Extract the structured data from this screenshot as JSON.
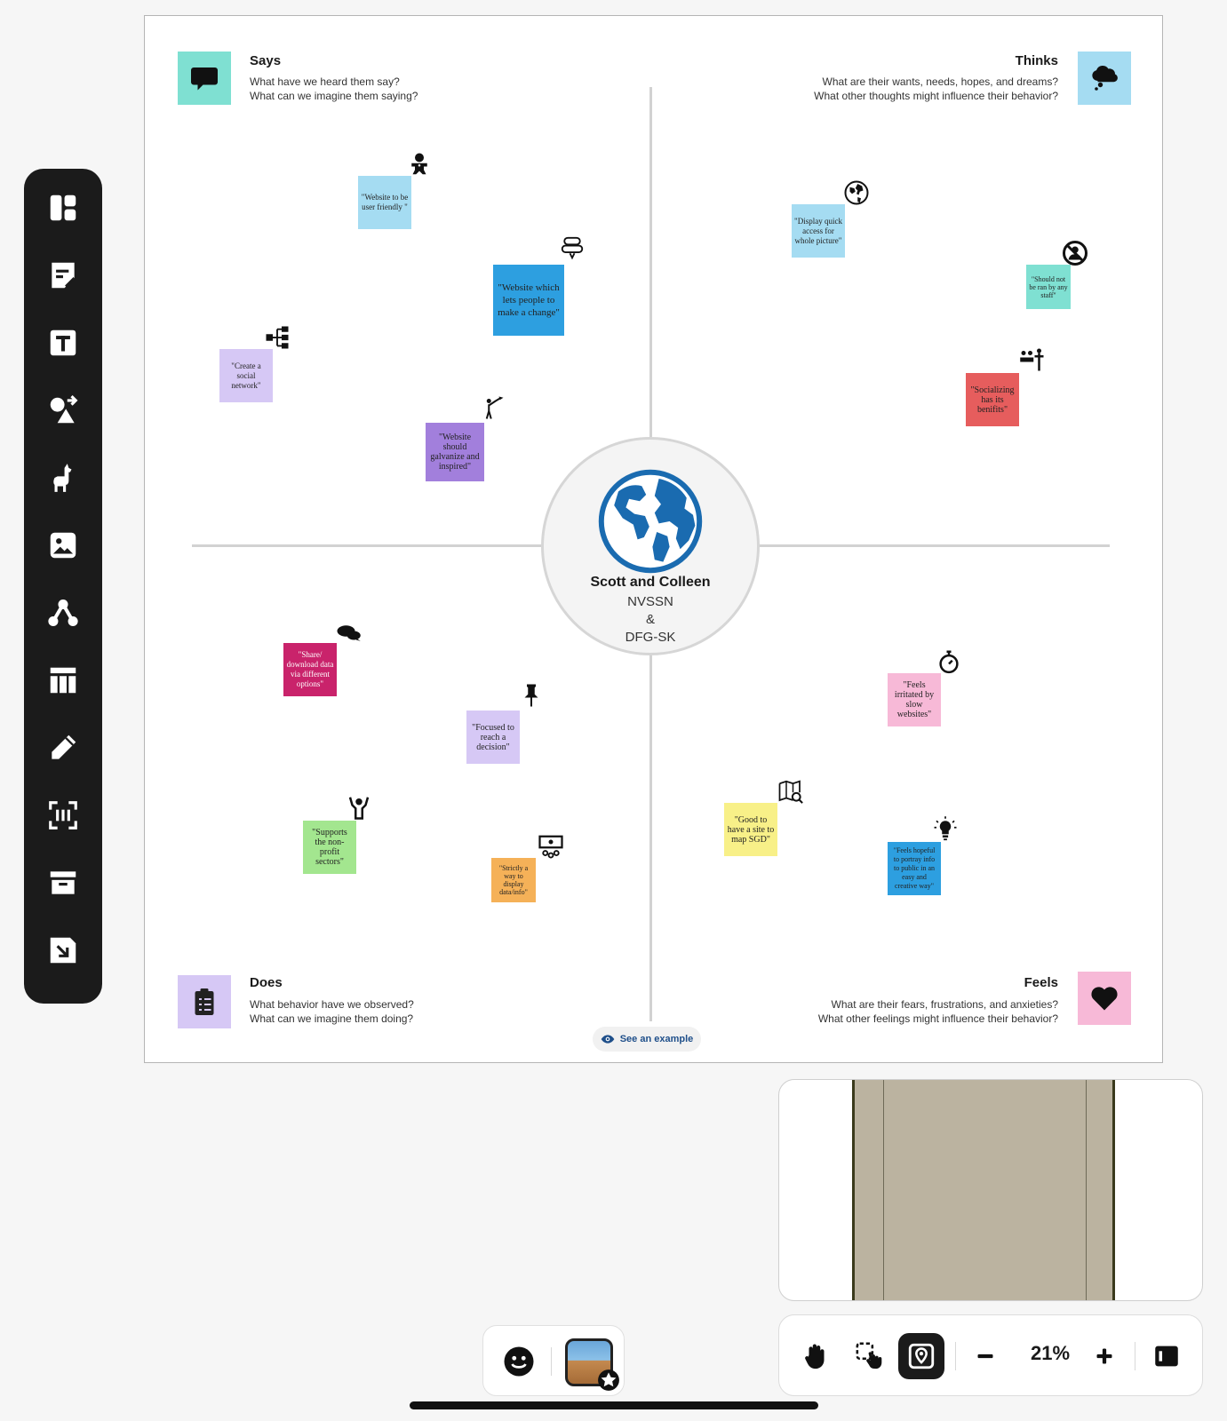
{
  "quadrants": {
    "says": {
      "title": "Says",
      "line1": "What have we heard them say?",
      "line2": "What can we imagine them saying?",
      "color": "#7fe0d2"
    },
    "thinks": {
      "title": "Thinks",
      "line1": "What are their wants, needs, hopes, and dreams?",
      "line2": "What other thoughts might influence their behavior?",
      "color": "#a5dcf2"
    },
    "does": {
      "title": "Does",
      "line1": "What behavior have we observed?",
      "line2": "What can we imagine them doing?",
      "color": "#d6c8f5"
    },
    "feels": {
      "title": "Feels",
      "line1": "What are their fears, frustrations, and anxieties?",
      "line2": "What other feelings might influence their behavior?",
      "color": "#f7b9d7"
    }
  },
  "center": {
    "name": "Scott and Colleen",
    "org1": "NVSSN",
    "org2": "&",
    "org3": "DFG-SK",
    "globe_color": "#1a6bb0"
  },
  "notes": [
    {
      "text": "\"Website to be user friendly \"",
      "color": "#a5dcf2",
      "sticker": "gingerbread-icon"
    },
    {
      "text": "\"Website which lets people to make a change\"",
      "color": "#2d9fe0",
      "sticker": "chat-bubbles-outline-icon"
    },
    {
      "text": "\"Create a social network\"",
      "color": "#d6c8f5",
      "sticker": "org-chart-icon"
    },
    {
      "text": "\"Website should galvanize and inspired\"",
      "color": "#a27fdc",
      "sticker": "person-flag-icon"
    },
    {
      "text": "\"Display quick access for whole picture\"",
      "color": "#a5dcf2",
      "sticker": "globe-icon"
    },
    {
      "text": "\"Should not be ran by any staff\"",
      "color": "#7fe0d2",
      "sticker": "no-person-icon"
    },
    {
      "text": "\"Socializing has its benifits\"",
      "color": "#e65d5d",
      "sticker": "meeting-icon"
    },
    {
      "text": "\"Share/ download data via different options\"",
      "color": "#c9236b",
      "sticker": "chat-bubbles-icon"
    },
    {
      "text": "\"Focused to reach a decision\"",
      "color": "#d6c8f5",
      "sticker": "pin-icon"
    },
    {
      "text": "\"Supports the non-profit sectors\"",
      "color": "#a3e68f",
      "sticker": "hands-up-icon"
    },
    {
      "text": "\"Strictly a way to display data/info\"",
      "color": "#f5b158",
      "sticker": "presentation-icon"
    },
    {
      "text": "\"Feels irritated by slow websites\"",
      "color": "#f7b9d7",
      "sticker": "stopwatch-icon"
    },
    {
      "text": "\"Good to have a site to map SGD\"",
      "color": "#f8f088",
      "sticker": "map-search-icon"
    },
    {
      "text": "\"Feels hopeful to portray info to public in an easy and creative way\"",
      "color": "#2d9fe0",
      "sticker": "lightbulb-icon"
    }
  ],
  "example_button": "See an example",
  "zoom": {
    "level": "21%"
  },
  "toolbar": [
    "templates-icon",
    "sticky-note-icon",
    "text-icon",
    "shapes-icon",
    "llama-icon",
    "image-icon",
    "connector-icon",
    "table-icon",
    "pen-icon",
    "scan-icon",
    "archive-icon",
    "import-icon"
  ],
  "colors": {
    "toolbar": "#1b1b1b",
    "board_border": "#b5b5b5",
    "axis": "#d2d2d2"
  }
}
